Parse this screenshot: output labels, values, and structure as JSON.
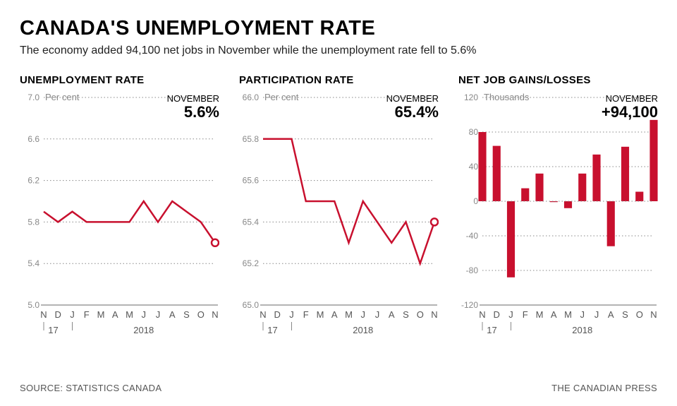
{
  "title": "CANADA'S UNEMPLOYMENT RATE",
  "subtitle": "The economy added 94,100 net jobs in November while the unemployment rate fell to 5.6%",
  "source": "SOURCE: STATISTICS CANADA",
  "credit": "THE CANADIAN PRESS",
  "colors": {
    "series": "#c8102e",
    "grid": "#888888",
    "text_muted": "#888888",
    "bg": "#ffffff"
  },
  "x_axis": {
    "months": [
      "N",
      "D",
      "J",
      "F",
      "M",
      "A",
      "M",
      "J",
      "J",
      "A",
      "S",
      "O",
      "N"
    ],
    "year_left": "17",
    "year_right": "2018"
  },
  "charts": {
    "unemp": {
      "title": "UNEMPLOYMENT RATE",
      "unit_label": "Per cent",
      "callout_label": "NOVEMBER",
      "callout_value": "5.6%",
      "ylim": [
        5.0,
        7.0
      ],
      "ytick_step": 0.4,
      "yticks": [
        5.0,
        5.4,
        5.8,
        6.2,
        6.6,
        7.0
      ],
      "values": [
        5.9,
        5.8,
        5.9,
        5.8,
        5.8,
        5.8,
        5.8,
        6.0,
        5.8,
        6.0,
        5.9,
        5.8,
        5.6
      ],
      "line_width": 2.5,
      "marker_radius": 5
    },
    "part": {
      "title": "PARTICIPATION RATE",
      "unit_label": "Per cent",
      "callout_label": "NOVEMBER",
      "callout_value": "65.4%",
      "ylim": [
        65.0,
        66.0
      ],
      "ytick_step": 0.2,
      "yticks": [
        65.0,
        65.2,
        65.4,
        65.6,
        65.8,
        66.0
      ],
      "values": [
        65.8,
        65.8,
        65.8,
        65.5,
        65.5,
        65.5,
        65.3,
        65.5,
        65.4,
        65.3,
        65.4,
        65.2,
        65.4
      ],
      "line_width": 2.5,
      "marker_radius": 5
    },
    "jobs": {
      "title": "NET JOB GAINS/LOSSES",
      "unit_label": "Thousands",
      "callout_label": "NOVEMBER",
      "callout_value": "+94,100",
      "ylim": [
        -120,
        120
      ],
      "ytick_step": 40,
      "yticks": [
        -120,
        -80,
        -40,
        0,
        40,
        80,
        120
      ],
      "values": [
        80,
        64,
        -88,
        15,
        32,
        -1,
        -8,
        32,
        54,
        -52,
        63,
        11,
        94
      ],
      "bar_width_ratio": 0.55
    }
  }
}
